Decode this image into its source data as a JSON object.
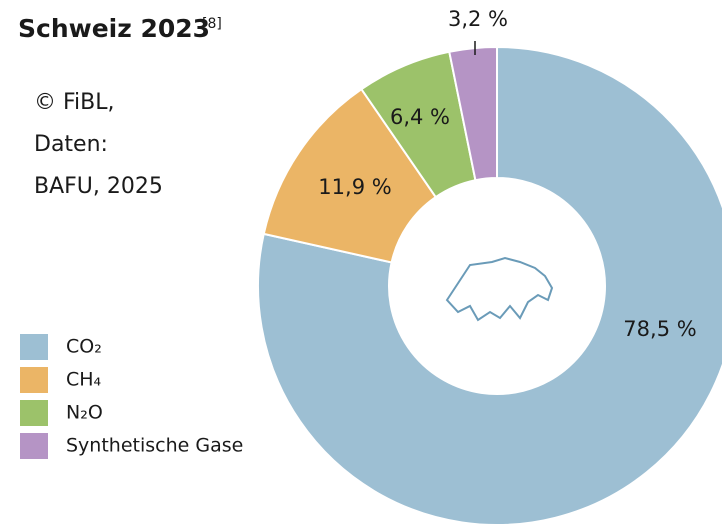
{
  "chart_data": {
    "type": "pie",
    "title": "Schweiz 2023",
    "title_ref": "[8]",
    "source_lines": [
      "© FiBL,",
      "Daten:",
      "BAFU, 2025"
    ],
    "categories": [
      "CO₂",
      "CH₄",
      "N₂O",
      "Synthetische Gase"
    ],
    "values": [
      78.5,
      11.9,
      6.4,
      3.2
    ],
    "value_labels": [
      "78,5 %",
      "11,9 %",
      "6,4 %",
      "3,2 %"
    ],
    "colors": [
      "#9dbfd3",
      "#ebb566",
      "#9cc26a",
      "#b594c5"
    ],
    "donut": true,
    "legend": "bottom-left"
  }
}
